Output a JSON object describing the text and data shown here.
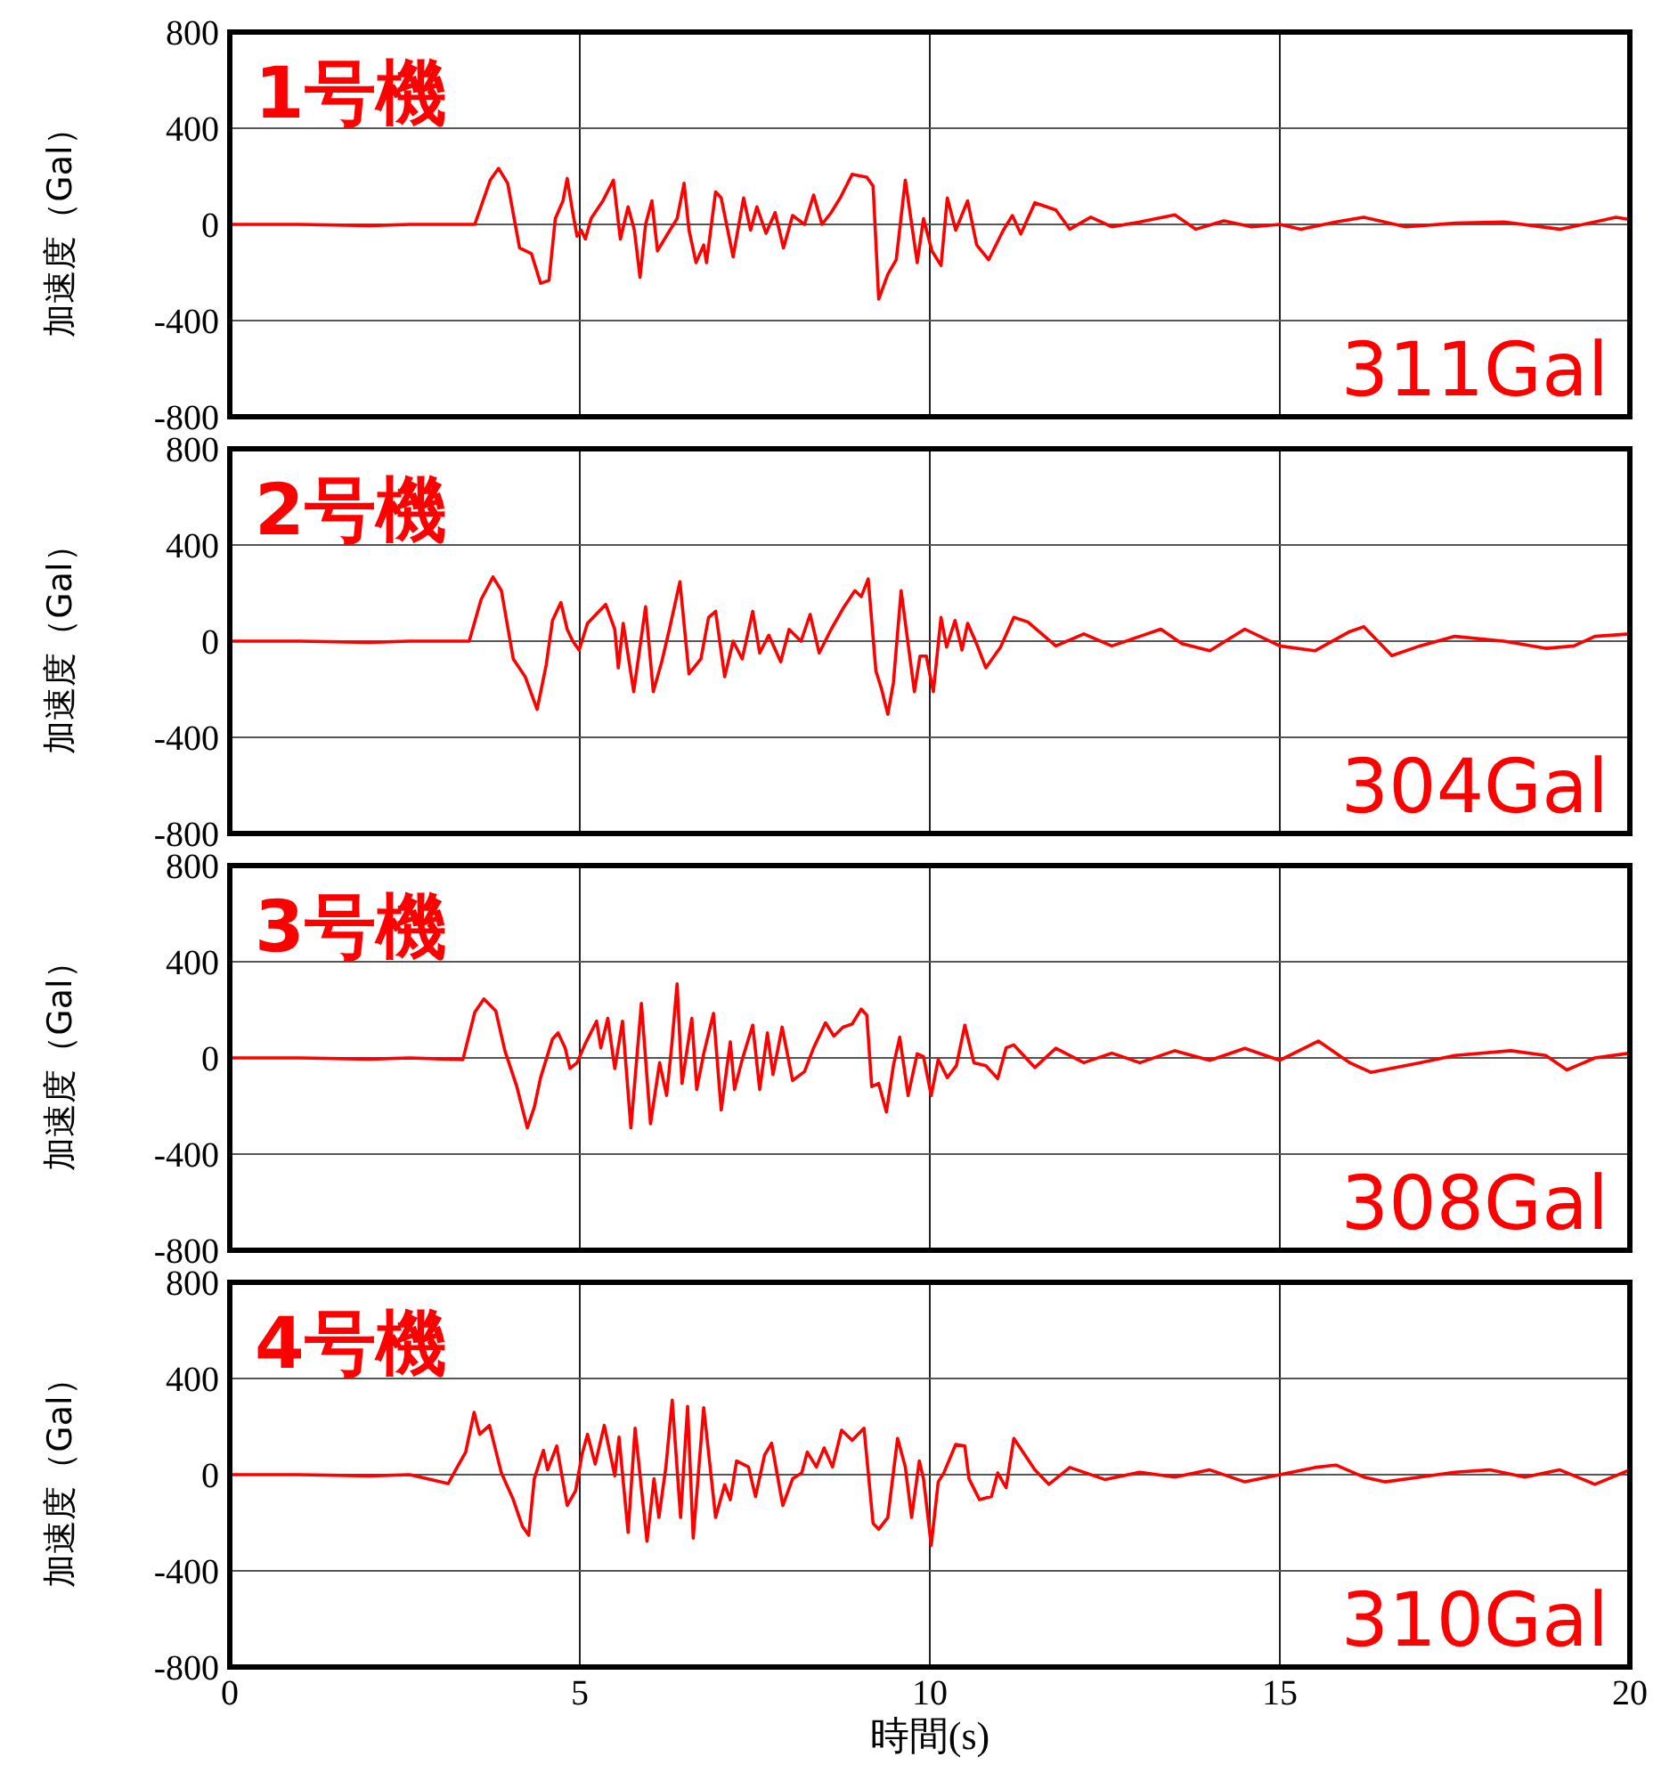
{
  "chart_data": [
    {
      "type": "line",
      "title": "1号機",
      "ylabel": "加速度（Gal）",
      "annotations": [
        "311Gal"
      ],
      "xlim": [
        0,
        20
      ],
      "ylim": [
        -800,
        800
      ],
      "xticks": [
        0,
        5,
        10,
        15,
        20
      ],
      "yticks": [
        -800,
        -400,
        0,
        400,
        800
      ],
      "grid": true,
      "tick_labels": "y",
      "line_style": "solid",
      "x": [
        0,
        1,
        2,
        2.57,
        3.5,
        3.72,
        3.84,
        3.97,
        4.14,
        4.31,
        4.44,
        4.56,
        4.65,
        4.76,
        4.82,
        4.9,
        4.96,
        5.02,
        5.08,
        5.16,
        5.33,
        5.48,
        5.58,
        5.69,
        5.78,
        5.86,
        5.94,
        6.03,
        6.11,
        6.26,
        6.39,
        6.49,
        6.56,
        6.66,
        6.77,
        6.81,
        6.94,
        7.02,
        7.19,
        7.34,
        7.44,
        7.53,
        7.66,
        7.79,
        7.91,
        8.04,
        8.21,
        8.34,
        8.46,
        8.59,
        8.72,
        8.89,
        9.1,
        9.19,
        9.27,
        9.4,
        9.52,
        9.65,
        9.82,
        9.91,
        10.03,
        10.16,
        10.25,
        10.37,
        10.54,
        10.67,
        10.84,
        11.05,
        11.18,
        11.3,
        11.5,
        11.8,
        12,
        12.3,
        12.6,
        13,
        13.5,
        13.8,
        14.2,
        14.6,
        15,
        15.3,
        15.8,
        16.2,
        16.8,
        17.5,
        18.2,
        19,
        19.5,
        19.8,
        20
      ],
      "series": [
        {
          "color": "#ff0000",
          "values": [
            0,
            0,
            -5,
            0,
            0,
            184,
            233,
            171,
            -98,
            -122,
            -245,
            -233,
            24,
            98,
            191,
            49,
            -49,
            -24,
            -61,
            24,
            98,
            184,
            -61,
            73,
            -24,
            -220,
            0,
            98,
            -110,
            -37,
            24,
            171,
            -24,
            -159,
            -86,
            -159,
            135,
            110,
            -135,
            110,
            -24,
            73,
            -37,
            49,
            -98,
            37,
            0,
            122,
            0,
            49,
            110,
            208,
            196,
            159,
            -311,
            -208,
            -147,
            184,
            -159,
            24,
            -110,
            -171,
            110,
            -24,
            98,
            -86,
            -147,
            -24,
            37,
            -40,
            90,
            60,
            -20,
            30,
            -10,
            10,
            40,
            -20,
            15,
            -10,
            0,
            -20,
            10,
            30,
            -10,
            5,
            10,
            -20,
            10,
            30,
            20
          ]
        }
      ]
    },
    {
      "type": "line",
      "title": "2号機",
      "ylabel": "加速度（Gal）",
      "annotations": [
        "304Gal"
      ],
      "xlim": [
        0,
        20
      ],
      "ylim": [
        -800,
        800
      ],
      "xticks": [
        0,
        5,
        10,
        15,
        20
      ],
      "yticks": [
        -800,
        -400,
        0,
        400,
        800
      ],
      "grid": true,
      "tick_labels": "y",
      "line_style": "solid",
      "x": [
        0,
        1,
        2,
        2.57,
        3.42,
        3.59,
        3.76,
        3.88,
        4.05,
        4.22,
        4.39,
        4.52,
        4.61,
        4.73,
        4.82,
        4.9,
        4.99,
        5.11,
        5.37,
        5.5,
        5.55,
        5.62,
        5.77,
        5.94,
        6.05,
        6.17,
        6.28,
        6.43,
        6.56,
        6.73,
        6.84,
        6.94,
        7.07,
        7.19,
        7.32,
        7.47,
        7.57,
        7.7,
        7.87,
        7.99,
        8.16,
        8.29,
        8.42,
        8.59,
        8.76,
        8.93,
        9.02,
        9.12,
        9.23,
        9.31,
        9.4,
        9.48,
        9.59,
        9.78,
        9.86,
        9.95,
        10.05,
        10.16,
        10.24,
        10.36,
        10.46,
        10.54,
        10.67,
        10.8,
        11.01,
        11.2,
        11.4,
        11.8,
        12.2,
        12.6,
        13,
        13.3,
        13.6,
        14,
        14.5,
        15,
        15.5,
        16,
        16.2,
        16.6,
        17,
        17.5,
        18.2,
        18.8,
        19.2,
        19.5,
        20
      ],
      "series": [
        {
          "color": "#ff0000",
          "values": [
            0,
            0,
            -5,
            0,
            0,
            173,
            267,
            210,
            -74,
            -148,
            -284,
            -99,
            86,
            161,
            49,
            0,
            -37,
            74,
            153,
            49,
            -111,
            74,
            -210,
            143,
            -210,
            -86,
            49,
            247,
            -136,
            -74,
            99,
            124,
            -148,
            0,
            -74,
            124,
            -49,
            25,
            -86,
            49,
            0,
            111,
            -49,
            49,
            136,
            210,
            185,
            259,
            -124,
            -198,
            -304,
            -173,
            210,
            -210,
            -62,
            -62,
            -210,
            99,
            -25,
            86,
            -37,
            74,
            -12,
            -111,
            -25,
            99,
            80,
            -20,
            30,
            -20,
            20,
            50,
            -10,
            -40,
            50,
            -20,
            -40,
            40,
            60,
            -60,
            -20,
            20,
            0,
            -30,
            -20,
            20,
            30
          ]
        }
      ]
    },
    {
      "type": "line",
      "title": "3号機",
      "ylabel": "加速度（Gal）",
      "annotations": [
        "308Gal"
      ],
      "xlim": [
        0,
        20
      ],
      "ylim": [
        -800,
        800
      ],
      "xticks": [
        0,
        5,
        10,
        15,
        20
      ],
      "yticks": [
        -800,
        -400,
        0,
        400,
        800
      ],
      "grid": true,
      "tick_labels": "y",
      "line_style": "solid",
      "x": [
        0,
        1,
        2,
        2.57,
        3.33,
        3.5,
        3.63,
        3.8,
        3.93,
        4.1,
        4.25,
        4.35,
        4.44,
        4.61,
        4.69,
        4.79,
        4.86,
        4.96,
        5.07,
        5.24,
        5.3,
        5.4,
        5.5,
        5.61,
        5.73,
        5.88,
        6.01,
        6.14,
        6.24,
        6.31,
        6.39,
        6.46,
        6.6,
        6.67,
        6.77,
        6.91,
        7.02,
        7.15,
        7.21,
        7.32,
        7.47,
        7.57,
        7.68,
        7.76,
        7.89,
        8.04,
        8.21,
        8.34,
        8.51,
        8.63,
        8.76,
        8.89,
        9.02,
        9.1,
        9.17,
        9.27,
        9.38,
        9.48,
        9.57,
        9.69,
        9.82,
        9.91,
        10.02,
        10.12,
        10.25,
        10.38,
        10.5,
        10.63,
        10.8,
        10.97,
        11.09,
        11.2,
        11.5,
        11.8,
        12.2,
        12.6,
        13,
        13.5,
        14,
        14.5,
        15,
        15.55,
        16,
        16.3,
        17,
        17.5,
        18.3,
        18.8,
        19.1,
        19.5,
        20
      ],
      "series": [
        {
          "color": "#ff0000",
          "values": [
            0,
            0,
            -5,
            0,
            -7,
            190,
            245,
            195,
            30,
            -119,
            -291,
            -205,
            -82,
            79,
            104,
            42,
            -44,
            -20,
            54,
            153,
            42,
            165,
            -44,
            153,
            -291,
            227,
            -274,
            -20,
            -156,
            42,
            308,
            -106,
            165,
            -131,
            17,
            185,
            -217,
            67,
            -131,
            -7,
            136,
            -131,
            104,
            -69,
            128,
            -94,
            -57,
            42,
            146,
            91,
            128,
            141,
            203,
            178,
            -119,
            -106,
            -225,
            -32,
            86,
            -156,
            17,
            5,
            -156,
            -7,
            -82,
            -32,
            136,
            -20,
            -32,
            -86,
            42,
            54,
            -40,
            40,
            -20,
            20,
            -20,
            30,
            -10,
            40,
            -10,
            70,
            -20,
            -60,
            -20,
            10,
            30,
            10,
            -50,
            0,
            20
          ]
        }
      ]
    },
    {
      "type": "line",
      "title": "4号機",
      "ylabel": "加速度（Gal）",
      "xlabel": "時間(s)",
      "annotations": [
        "310Gal"
      ],
      "xlim": [
        0,
        20
      ],
      "ylim": [
        -800,
        800
      ],
      "xticks": [
        0,
        5,
        10,
        15,
        20
      ],
      "yticks": [
        -800,
        -400,
        0,
        400,
        800
      ],
      "grid": true,
      "line_style": "solid",
      "x": [
        0,
        1,
        2,
        2.57,
        3.12,
        3.25,
        3.37,
        3.49,
        3.57,
        3.71,
        3.88,
        4.05,
        4.18,
        4.27,
        4.35,
        4.48,
        4.54,
        4.67,
        4.82,
        4.94,
        5.03,
        5.11,
        5.22,
        5.35,
        5.5,
        5.56,
        5.69,
        5.79,
        5.96,
        6.06,
        6.13,
        6.23,
        6.32,
        6.44,
        6.54,
        6.62,
        6.77,
        6.94,
        7.07,
        7.15,
        7.24,
        7.41,
        7.51,
        7.64,
        7.74,
        7.9,
        8.04,
        8.17,
        8.25,
        8.38,
        8.49,
        8.61,
        8.74,
        8.89,
        9.06,
        9.19,
        9.27,
        9.4,
        9.54,
        9.65,
        9.74,
        9.85,
        9.91,
        10.02,
        10.12,
        10.2,
        10.37,
        10.5,
        10.56,
        10.71,
        10.88,
        10.97,
        11.09,
        11.2,
        11.5,
        11.7,
        12,
        12.5,
        13,
        13.5,
        14,
        14.5,
        15,
        15.5,
        15.8,
        16.2,
        16.5,
        17,
        17.5,
        18,
        18.5,
        19,
        19.5,
        20
      ],
      "series": [
        {
          "color": "#ff0000",
          "values": [
            0,
            0,
            -5,
            0,
            -37,
            32,
            94,
            259,
            168,
            205,
            7,
            -104,
            -215,
            -252,
            -17,
            101,
            20,
            119,
            -128,
            -67,
            82,
            168,
            44,
            205,
            -5,
            156,
            -240,
            193,
            -277,
            -17,
            -178,
            32,
            310,
            -178,
            284,
            -264,
            279,
            -178,
            -42,
            -104,
            57,
            32,
            -91,
            82,
            131,
            -128,
            -17,
            7,
            94,
            32,
            111,
            32,
            185,
            143,
            193,
            -203,
            -227,
            -178,
            151,
            32,
            -178,
            57,
            -17,
            -294,
            -30,
            7,
            126,
            119,
            -17,
            -104,
            -91,
            7,
            -54,
            151,
            20,
            -40,
            30,
            -20,
            10,
            -10,
            20,
            -30,
            0,
            30,
            40,
            -10,
            -30,
            -10,
            10,
            20,
            -10,
            20,
            -40,
            20
          ]
        }
      ]
    }
  ]
}
